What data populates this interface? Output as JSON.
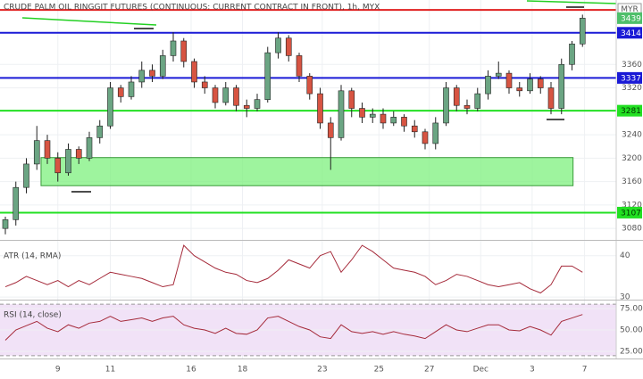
{
  "chart_data": [
    {
      "type": "candlestick",
      "title": "CRUDE PALM OIL RINGGIT FUTURES (CONTINUOUS: CURRENT CONTRACT IN FRONT), 1h, MYX",
      "currency": "MYR",
      "open": [
        3080,
        3095,
        3150,
        3190,
        3230,
        3200,
        3175,
        3215,
        3200,
        3235,
        3255,
        3320,
        3305,
        3330,
        3350,
        3340,
        3375,
        3400,
        3365,
        3330,
        3320,
        3295,
        3320,
        3290,
        3285,
        3300,
        3380,
        3405,
        3375,
        3340,
        3310,
        3260,
        3235,
        3315,
        3285,
        3270,
        3275,
        3260,
        3270,
        3255,
        3245,
        3225,
        3260,
        3320,
        3290,
        3285,
        3310,
        3340,
        3345,
        3320,
        3315,
        3335,
        3320,
        3285,
        3360,
        3395
      ],
      "high": [
        3100,
        3160,
        3200,
        3255,
        3240,
        3210,
        3225,
        3220,
        3245,
        3265,
        3330,
        3325,
        3340,
        3365,
        3360,
        3385,
        3415,
        3405,
        3370,
        3340,
        3325,
        3330,
        3325,
        3300,
        3310,
        3390,
        3415,
        3410,
        3380,
        3345,
        3320,
        3270,
        3325,
        3320,
        3295,
        3285,
        3285,
        3280,
        3275,
        3265,
        3250,
        3270,
        3330,
        3325,
        3300,
        3320,
        3350,
        3365,
        3350,
        3330,
        3345,
        3340,
        3330,
        3370,
        3400,
        3445
      ],
      "low": [
        3070,
        3085,
        3140,
        3180,
        3190,
        3160,
        3170,
        3190,
        3195,
        3225,
        3250,
        3295,
        3300,
        3320,
        3330,
        3335,
        3365,
        3355,
        3320,
        3310,
        3285,
        3290,
        3280,
        3270,
        3280,
        3295,
        3370,
        3365,
        3330,
        3300,
        3250,
        3180,
        3230,
        3270,
        3260,
        3260,
        3250,
        3255,
        3245,
        3235,
        3215,
        3215,
        3255,
        3280,
        3275,
        3280,
        3300,
        3335,
        3310,
        3305,
        3310,
        3310,
        3275,
        3275,
        3350,
        3390
      ],
      "close": [
        3095,
        3150,
        3190,
        3230,
        3200,
        3175,
        3215,
        3200,
        3235,
        3255,
        3320,
        3305,
        3330,
        3350,
        3340,
        3375,
        3400,
        3365,
        3330,
        3320,
        3295,
        3320,
        3290,
        3285,
        3300,
        3380,
        3405,
        3375,
        3340,
        3310,
        3260,
        3235,
        3315,
        3285,
        3270,
        3275,
        3260,
        3270,
        3255,
        3245,
        3225,
        3260,
        3320,
        3290,
        3285,
        3310,
        3340,
        3345,
        3320,
        3315,
        3335,
        3320,
        3285,
        3360,
        3395,
        3439
      ],
      "up_color": "#6ba583",
      "down_color": "#d75442",
      "last_color": "#4fbf6b",
      "ylim": [
        3062,
        3470
      ],
      "yticks": [
        3080,
        3120,
        3160,
        3200,
        3240,
        3320,
        3360
      ],
      "xticks": [
        {
          "value": 5,
          "label": "9"
        },
        {
          "value": 10,
          "label": "11"
        },
        {
          "value": 17.7,
          "label": "16"
        },
        {
          "value": 22.6,
          "label": "18"
        },
        {
          "value": 30.2,
          "label": "23"
        },
        {
          "value": 35.6,
          "label": "25"
        },
        {
          "value": 40.4,
          "label": "27"
        },
        {
          "value": 45.3,
          "label": "Dec"
        },
        {
          "value": 50.2,
          "label": "3"
        },
        {
          "value": 55.2,
          "label": "7"
        }
      ],
      "grid": true,
      "levels": [
        {
          "value": 3453,
          "color": "#e02020",
          "show_label": false,
          "text_color": "#ffffff"
        },
        {
          "value": 3414,
          "color": "#1a1ad6",
          "show_label": true,
          "text_color": "#ffffff"
        },
        {
          "value": 3337,
          "color": "#1a1ad6",
          "show_label": true,
          "text_color": "#ffffff"
        },
        {
          "value": 3281,
          "color": "#22e022",
          "show_label": true,
          "text_color": "#003300"
        },
        {
          "value": 3107,
          "color": "#22e022",
          "show_label": true,
          "text_color": "#003300"
        }
      ],
      "zone": {
        "from": 3153,
        "to": 3201,
        "xrange": [
          3.4,
          54.1
        ],
        "color": "#7ef07e"
      }
    },
    {
      "type": "line",
      "title": "ATR (14, RMA)",
      "values": [
        32.5,
        33.5,
        35,
        34,
        33,
        34,
        32.5,
        34,
        33,
        34.5,
        36,
        35.5,
        35,
        34.5,
        33.5,
        32.5,
        33,
        42.5,
        40,
        38.5,
        37,
        36,
        35.5,
        34,
        33.5,
        34.5,
        36.5,
        39,
        38,
        37,
        40,
        41,
        36,
        39,
        42.5,
        41,
        39,
        37,
        36.5,
        36,
        35,
        33,
        34,
        35.5,
        35,
        34,
        33,
        32.5,
        33,
        33.5,
        32,
        31,
        33,
        37.5,
        37.5,
        36
      ],
      "color": "#a52a3a",
      "ylim": [
        29.6,
        43.6
      ],
      "yticks": [
        30,
        40
      ]
    },
    {
      "type": "line",
      "title": "RSI (14, close)",
      "values": [
        38,
        50,
        55,
        60,
        52,
        48,
        56,
        52,
        58,
        60,
        66,
        60,
        62,
        64,
        60,
        64,
        66,
        56,
        52,
        50,
        46,
        52,
        46,
        45,
        50,
        64,
        66,
        60,
        54,
        50,
        42,
        40,
        56,
        48,
        46,
        48,
        45,
        48,
        45,
        43,
        40,
        48,
        56,
        50,
        48,
        52,
        56,
        56,
        50,
        49,
        54,
        50,
        44,
        60,
        64,
        68
      ],
      "color": "#a52a3a",
      "ylim": [
        16.7,
        83.3
      ],
      "yticks": [
        {
          "value": 25,
          "label": "25.00"
        },
        {
          "value": 50,
          "label": "50.00"
        },
        {
          "value": 75,
          "label": "75.00"
        }
      ],
      "band": [
        20,
        80
      ],
      "band_color": "#f1e2f7"
    }
  ]
}
